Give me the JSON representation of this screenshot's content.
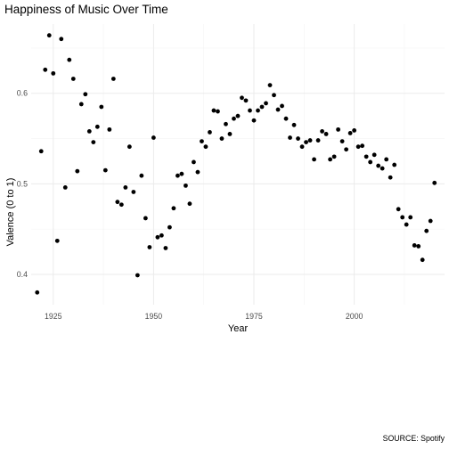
{
  "chart_data": {
    "type": "scatter",
    "title": "Happiness of Music Over Time",
    "xlabel": "Year",
    "ylabel": "Valence (0 to 1)",
    "caption": "SOURCE: Spotify",
    "xlim": [
      1919.5,
      2022.5
    ],
    "ylim": [
      0.3665,
      0.6765
    ],
    "x_ticks": [
      1925,
      1950,
      1975,
      2000
    ],
    "y_ticks": [
      0.4,
      0.5,
      0.6
    ],
    "y_tick_labels": [
      "0.4",
      "0.5",
      "0.6"
    ],
    "grid": true,
    "legend": "none",
    "point_color": "#000000",
    "series": [
      {
        "x": [
          1921,
          1922,
          1923,
          1924,
          1925,
          1926,
          1927,
          1928,
          1929,
          1930,
          1931,
          1932,
          1933,
          1934,
          1935,
          1936,
          1937,
          1938,
          1939,
          1940,
          1941,
          1942,
          1943,
          1944,
          1945,
          1946,
          1947,
          1948,
          1949,
          1950,
          1951,
          1952,
          1953,
          1954,
          1955,
          1956,
          1957,
          1958,
          1959,
          1960,
          1961,
          1962,
          1963,
          1964,
          1965,
          1966,
          1967,
          1968,
          1969,
          1970,
          1971,
          1972,
          1973,
          1974,
          1975,
          1976,
          1977,
          1978,
          1979,
          1980,
          1981,
          1982,
          1983,
          1984,
          1985,
          1986,
          1987,
          1988,
          1989,
          1990,
          1991,
          1992,
          1993,
          1994,
          1995,
          1996,
          1997,
          1998,
          1999,
          2000,
          2001,
          2002,
          2003,
          2004,
          2005,
          2006,
          2007,
          2008,
          2009,
          2010,
          2011,
          2012,
          2013,
          2014,
          2015,
          2016,
          2017,
          2018,
          2019,
          2020
        ],
        "y": [
          0.38,
          0.536,
          0.626,
          0.664,
          0.622,
          0.437,
          0.66,
          0.496,
          0.637,
          0.616,
          0.514,
          0.588,
          0.599,
          0.558,
          0.546,
          0.563,
          0.585,
          0.515,
          0.56,
          0.616,
          0.48,
          0.477,
          0.496,
          0.541,
          0.491,
          0.399,
          0.509,
          0.462,
          0.43,
          0.551,
          0.441,
          0.443,
          0.429,
          0.452,
          0.473,
          0.509,
          0.511,
          0.498,
          0.478,
          0.524,
          0.513,
          0.547,
          0.541,
          0.557,
          0.581,
          0.58,
          0.55,
          0.566,
          0.555,
          0.572,
          0.575,
          0.595,
          0.592,
          0.581,
          0.57,
          0.581,
          0.585,
          0.589,
          0.609,
          0.598,
          0.582,
          0.586,
          0.572,
          0.551,
          0.565,
          0.55,
          0.541,
          0.546,
          0.548,
          0.527,
          0.548,
          0.558,
          0.555,
          0.527,
          0.53,
          0.56,
          0.547,
          0.538,
          0.556,
          0.559,
          0.541,
          0.542,
          0.53,
          0.524,
          0.532,
          0.52,
          0.517,
          0.527,
          0.507,
          0.521,
          0.472,
          0.463,
          0.455,
          0.463,
          0.432,
          0.431,
          0.416,
          0.448,
          0.459,
          0.501
        ]
      }
    ]
  }
}
